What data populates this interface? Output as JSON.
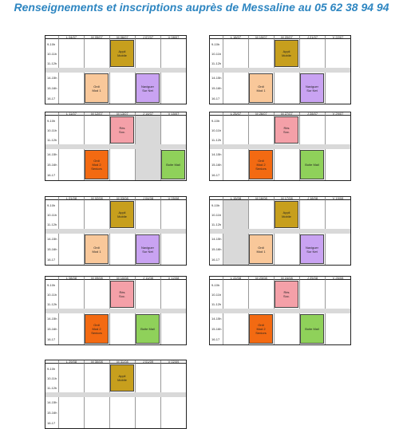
{
  "title": "Renseignements et inscriptions auprès de Messaline au 05 62 38 94 94",
  "rows": {
    "morning": [
      "9-10h",
      "10-11h",
      "11-12h"
    ],
    "afternoon": [
      "14-15h",
      "15-16h",
      "16-17"
    ]
  },
  "colors": {
    "appli": "#c79f1d",
    "ordi": "#f9c89a",
    "naviguer": "#c9a3f2",
    "reseaux": "#f4a0a8",
    "ordi2": "#f36a12",
    "boite": "#8fd15a",
    "closed": "#d9d9d9"
  },
  "weeks": [
    {
      "days": [
        "L 04/07",
        "M 05/07",
        "M 06/07",
        "J 07/07",
        "V 08/07"
      ],
      "am": {
        "day": 2,
        "type": "appli",
        "lines": [
          "Appli",
          "Mobile"
        ]
      },
      "pm": [
        {
          "day": 1,
          "type": "ordi",
          "lines": [
            "Ordi",
            "Mod 1"
          ]
        },
        {
          "day": 3,
          "type": "naviguer",
          "lines": [
            "Naviguer",
            "Sur Net"
          ]
        }
      ],
      "closed": []
    },
    {
      "days": [
        "L 18/07",
        "M 19/07",
        "M 20/07",
        "J 21/07",
        "V 22/07"
      ],
      "am": {
        "day": 2,
        "type": "appli",
        "lines": [
          "Appli",
          "Mobile"
        ]
      },
      "pm": [
        {
          "day": 1,
          "type": "ordi",
          "lines": [
            "Ordi",
            "Mod 1"
          ]
        },
        {
          "day": 3,
          "type": "naviguer",
          "lines": [
            "Naviguer",
            "Sur Net"
          ]
        }
      ],
      "closed": []
    },
    {
      "days": [
        "L 11/07",
        "M 12/07",
        "M 13/07",
        "J 14/07",
        "V 15/07"
      ],
      "am": {
        "day": 2,
        "type": "reseaux",
        "lines": [
          "Rés",
          "Soc."
        ]
      },
      "pm": [
        {
          "day": 1,
          "type": "ordi2",
          "lines": [
            "Ordi",
            "Mod 2",
            "Seniors"
          ]
        },
        {
          "day": 4,
          "type": "boite",
          "lines": [
            "Boite Mail"
          ]
        }
      ],
      "closed": [
        3
      ]
    },
    {
      "days": [
        "L 25/07",
        "M 26/07",
        "M 27/07",
        "J 28/07",
        "V 29/07"
      ],
      "am": {
        "day": 2,
        "type": "reseaux",
        "lines": [
          "Rés",
          "Soc."
        ]
      },
      "pm": [
        {
          "day": 1,
          "type": "ordi2",
          "lines": [
            "Ordi",
            "Mod 2",
            "Seniors"
          ]
        },
        {
          "day": 3,
          "type": "boite",
          "lines": [
            "Boite Mail"
          ]
        }
      ],
      "closed": []
    },
    {
      "days": [
        "L 01/08",
        "M 02/08",
        "M 03/08",
        "J 04/08",
        "V 05/08"
      ],
      "am": {
        "day": 2,
        "type": "appli",
        "lines": [
          "Appli",
          "Mobile"
        ]
      },
      "pm": [
        {
          "day": 1,
          "type": "ordi",
          "lines": [
            "Ordi",
            "Mod 1"
          ]
        },
        {
          "day": 3,
          "type": "naviguer",
          "lines": [
            "Naviguer",
            "Sur Net"
          ]
        }
      ],
      "closed": []
    },
    {
      "days": [
        "L 15/08",
        "M 16/08",
        "M 17/08",
        "J 18/08",
        "V 19/08"
      ],
      "am": {
        "day": 2,
        "type": "appli",
        "lines": [
          "Appli",
          "Mobile"
        ]
      },
      "pm": [
        {
          "day": 1,
          "type": "ordi",
          "lines": [
            "Ordi",
            "Mod 1"
          ]
        },
        {
          "day": 3,
          "type": "naviguer",
          "lines": [
            "Naviguer",
            "Sur Net"
          ]
        }
      ],
      "closed": [
        0
      ]
    },
    {
      "days": [
        "L 08/08",
        "M 09/08",
        "M 10/08",
        "J 11/08",
        "V 12/08"
      ],
      "am": {
        "day": 2,
        "type": "reseaux",
        "lines": [
          "Rés",
          "Soc."
        ]
      },
      "pm": [
        {
          "day": 1,
          "type": "ordi2",
          "lines": [
            "Ordi",
            "Mod 2",
            "Seniors"
          ]
        },
        {
          "day": 3,
          "type": "boite",
          "lines": [
            "Boite Mail"
          ]
        }
      ],
      "closed": []
    },
    {
      "days": [
        "L 22/08",
        "M 23/08",
        "M 24/08",
        "J 25/08",
        "V 26/08"
      ],
      "am": {
        "day": 2,
        "type": "reseaux",
        "lines": [
          "Rés",
          "Soc."
        ]
      },
      "pm": [
        {
          "day": 1,
          "type": "ordi2",
          "lines": [
            "Ordi",
            "Mod 2",
            "Seniors"
          ]
        },
        {
          "day": 3,
          "type": "boite",
          "lines": [
            "Boite Mail"
          ]
        }
      ],
      "closed": []
    },
    {
      "days": [
        "L 29/08",
        "M 30/08",
        "M 31/08",
        "J 01/09",
        "V 02/09"
      ],
      "am": {
        "day": 2,
        "type": "appli",
        "lines": [
          "Appli",
          "Mobile"
        ]
      },
      "pm": [],
      "closed": []
    }
  ]
}
